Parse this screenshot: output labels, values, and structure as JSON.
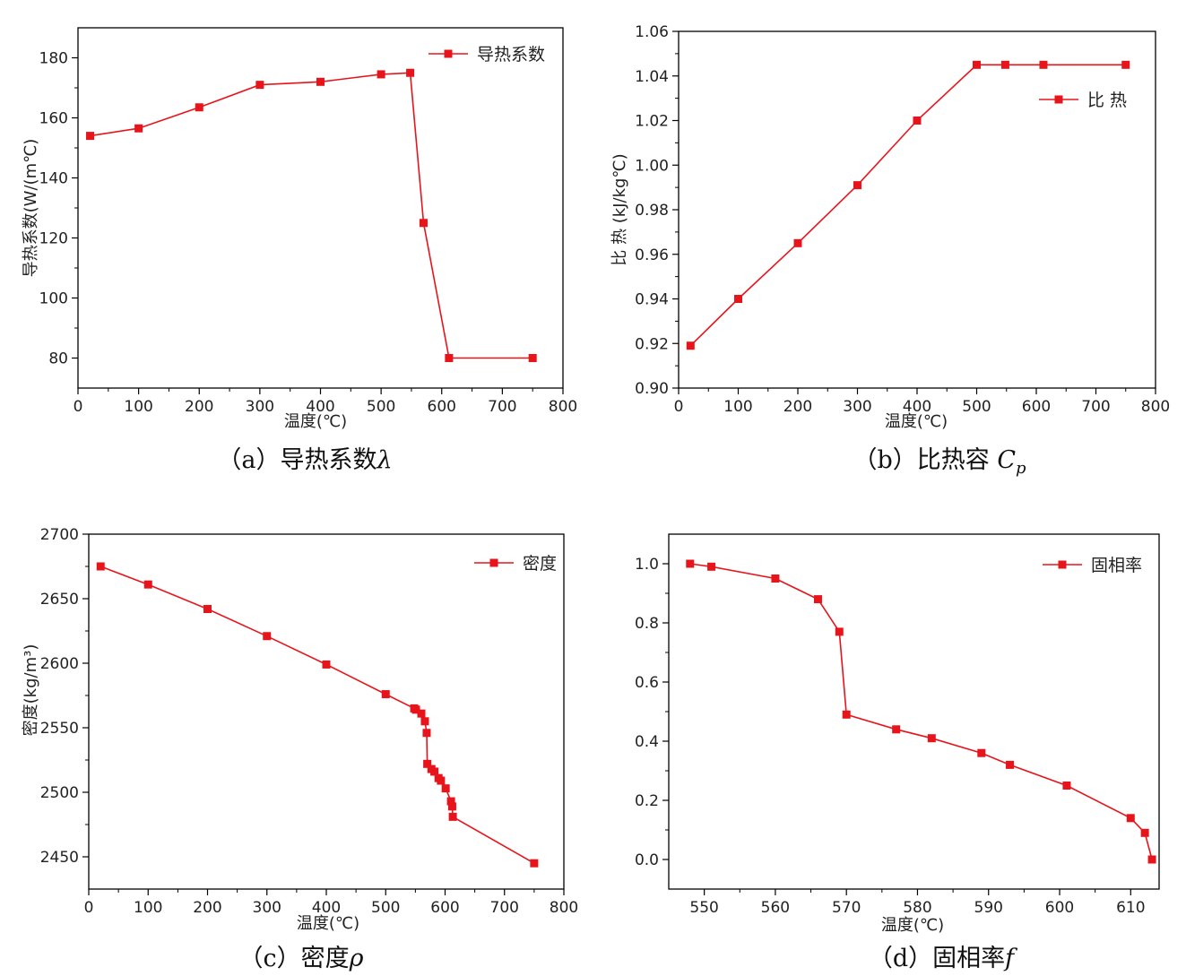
{
  "chart_data": [
    {
      "type": "line",
      "caption": "（a）导热系数",
      "caption_symbol": "λ",
      "caption_sub": "",
      "xlabel": "温度(℃)",
      "ylabel": "导热系数(W/(m℃)",
      "xlim": [
        0,
        800
      ],
      "ylim": [
        70,
        190
      ],
      "xticks": [
        0,
        100,
        200,
        300,
        400,
        500,
        600,
        700,
        800
      ],
      "yticks": [
        80,
        100,
        120,
        140,
        160,
        180
      ],
      "ytick_decimals": 0,
      "legend_position": "top-right",
      "color": "#e8141b",
      "series": [
        {
          "name": "导热系数",
          "x": [
            20,
            100,
            200,
            300,
            400,
            500,
            548,
            570,
            612,
            750
          ],
          "y": [
            154,
            156.5,
            163.5,
            171,
            172,
            174.5,
            175,
            125,
            80,
            80
          ]
        }
      ]
    },
    {
      "type": "line",
      "caption": "（b）比热容 ",
      "caption_symbol": "C",
      "caption_sub": "p",
      "xlabel": "温度(℃)",
      "ylabel": "比 热 (kJ/kg℃)",
      "xlim": [
        0,
        800
      ],
      "ylim": [
        0.9,
        1.06
      ],
      "xticks": [
        0,
        100,
        200,
        300,
        400,
        500,
        600,
        700,
        800
      ],
      "yticks": [
        0.9,
        0.92,
        0.94,
        0.96,
        0.98,
        1.0,
        1.02,
        1.04,
        1.06
      ],
      "ytick_decimals": 2,
      "legend_position": "upper-right",
      "color": "#e8141b",
      "series": [
        {
          "name": "比 热",
          "x": [
            20,
            100,
            200,
            300,
            400,
            500,
            548,
            612,
            750
          ],
          "y": [
            0.919,
            0.94,
            0.965,
            0.991,
            1.02,
            1.045,
            1.045,
            1.045,
            1.045
          ]
        }
      ]
    },
    {
      "type": "line",
      "caption": "（c）密度",
      "caption_symbol": "ρ",
      "caption_sub": "",
      "xlabel": "温度(℃)",
      "ylabel": "密度(kg/m³)",
      "xlim": [
        0,
        800
      ],
      "ylim": [
        2425,
        2700
      ],
      "xticks": [
        0,
        100,
        200,
        300,
        400,
        500,
        600,
        700,
        800
      ],
      "yticks": [
        2450,
        2500,
        2550,
        2600,
        2650,
        2700
      ],
      "ytick_decimals": 0,
      "legend_position": "top-right",
      "color": "#e8141b",
      "series": [
        {
          "name": "密度",
          "x": [
            20,
            100,
            200,
            300,
            400,
            500,
            548,
            551,
            560,
            566,
            569,
            570,
            577,
            582,
            589,
            593,
            601,
            610,
            612,
            613,
            750
          ],
          "y": [
            2675,
            2661,
            2642,
            2621,
            2599,
            2576,
            2565,
            2564,
            2561,
            2555,
            2546,
            2522,
            2518,
            2516,
            2511,
            2509,
            2503,
            2493,
            2489,
            2481,
            2445
          ]
        }
      ]
    },
    {
      "type": "line",
      "caption": "（d）固相率",
      "caption_symbol": "f",
      "caption_sub": "",
      "xlabel": "温度(℃)",
      "ylabel": "",
      "xlim": [
        545,
        614
      ],
      "ylim": [
        -0.1,
        1.1
      ],
      "xticks": [
        550,
        560,
        570,
        580,
        590,
        600,
        610
      ],
      "yticks": [
        0.0,
        0.2,
        0.4,
        0.6,
        0.8,
        1.0
      ],
      "ytick_decimals": 1,
      "legend_position": "top-right",
      "color": "#e8141b",
      "series": [
        {
          "name": "固相率",
          "x": [
            548,
            551,
            560,
            566,
            569,
            570,
            577,
            582,
            589,
            593,
            601,
            610,
            612,
            613
          ],
          "y": [
            1.0,
            0.99,
            0.95,
            0.88,
            0.77,
            0.49,
            0.44,
            0.41,
            0.36,
            0.32,
            0.25,
            0.14,
            0.09,
            0.0
          ]
        }
      ]
    }
  ]
}
